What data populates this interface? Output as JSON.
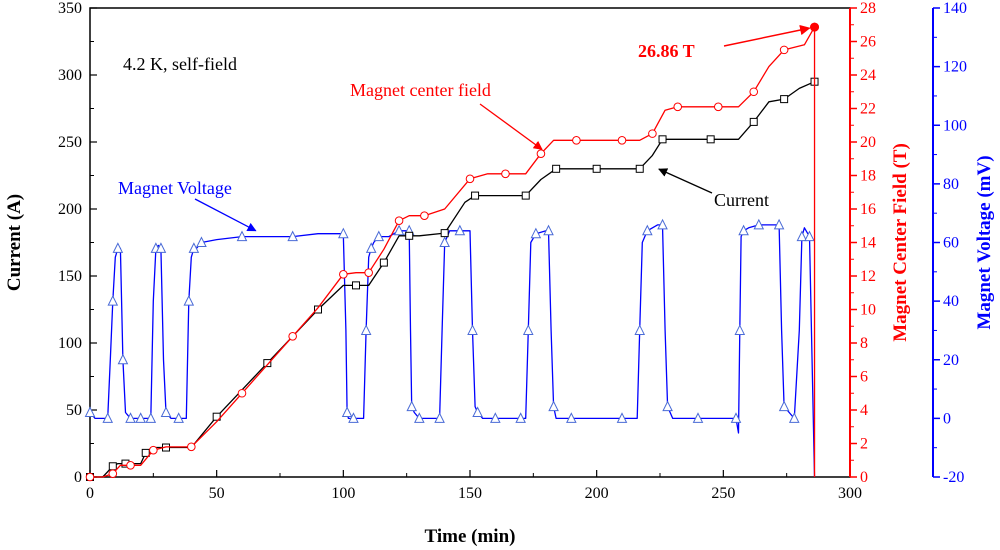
{
  "chart_data": {
    "type": "line",
    "title": "",
    "xlabel": "Time (min)",
    "xlim": [
      0,
      300
    ],
    "x_ticks": [
      0,
      50,
      100,
      150,
      200,
      250,
      300
    ],
    "axes": {
      "left": {
        "label": "Current (A)",
        "lim": [
          0,
          350
        ],
        "ticks": [
          0,
          50,
          100,
          150,
          200,
          250,
          300,
          350
        ],
        "color": "#000000"
      },
      "right_inner": {
        "label": "Magnet Center Field (T)",
        "lim": [
          0,
          28
        ],
        "ticks": [
          0,
          2,
          4,
          6,
          8,
          10,
          12,
          14,
          16,
          18,
          20,
          22,
          24,
          26,
          28
        ],
        "color": "#ff0000"
      },
      "right_outer": {
        "label": "Magnet Voltage (mV)",
        "lim": [
          -20,
          140
        ],
        "ticks": [
          -20,
          0,
          20,
          40,
          60,
          80,
          100,
          120,
          140
        ],
        "color": "#0000ff"
      }
    },
    "grid": false,
    "series": [
      {
        "name": "Current",
        "axis": "left",
        "color": "#000000",
        "marker": "square",
        "x": [
          0,
          5,
          9,
          11,
          14,
          20,
          22,
          26,
          30,
          40,
          50,
          60,
          70,
          80,
          90,
          100,
          105,
          110,
          116,
          122,
          126,
          130,
          140,
          148,
          152,
          165,
          172,
          178,
          184,
          193,
          200,
          210,
          217,
          222,
          226,
          232,
          245,
          256,
          262,
          268,
          274,
          280,
          286
        ],
        "y": [
          0,
          0,
          8,
          10,
          10,
          10,
          18,
          22,
          22,
          22,
          45,
          65,
          85,
          105,
          125,
          143,
          143,
          143,
          160,
          180,
          180,
          180,
          182,
          205,
          210,
          210,
          210,
          222,
          230,
          230,
          230,
          230,
          230,
          240,
          252,
          252,
          252,
          252,
          265,
          280,
          282,
          290,
          295
        ]
      },
      {
        "name": "Magnet center field",
        "axis": "right_inner",
        "color": "#ff0000",
        "marker": "circle",
        "x": [
          0,
          5,
          9,
          12,
          16,
          20,
          25,
          30,
          40,
          50,
          60,
          70,
          80,
          90,
          100,
          105,
          110,
          116,
          122,
          126,
          132,
          140,
          150,
          157,
          164,
          172,
          178,
          183,
          192,
          200,
          210,
          217,
          222,
          227,
          232,
          240,
          248,
          256,
          262,
          268,
          274,
          282,
          286
        ],
        "y": [
          0,
          0,
          0.2,
          0.7,
          0.7,
          0.7,
          1.6,
          1.8,
          1.8,
          3.3,
          5.0,
          6.7,
          8.4,
          10.1,
          12.1,
          12.2,
          12.2,
          13.6,
          15.3,
          15.6,
          15.6,
          16.0,
          17.8,
          18.1,
          18.1,
          18.1,
          19.3,
          20.1,
          20.1,
          20.1,
          20.1,
          20.1,
          20.5,
          21.9,
          22.1,
          22.1,
          22.1,
          22.1,
          23.0,
          24.5,
          25.5,
          25.8,
          26.86
        ]
      },
      {
        "name": "Magnet Voltage",
        "axis": "right_outer",
        "color": "#0000ff",
        "marker": "triangle",
        "x": [
          0,
          2,
          7,
          8,
          9,
          10,
          11,
          12,
          13,
          14,
          16,
          18,
          20,
          22,
          24,
          25,
          26,
          27,
          28,
          29,
          30,
          32,
          35,
          38,
          39,
          40,
          41,
          42,
          44,
          50,
          60,
          70,
          80,
          90,
          100,
          101,
          101.5,
          102,
          104,
          108,
          109,
          110,
          111,
          112,
          114,
          118,
          122,
          124,
          126,
          126.5,
          127,
          128,
          130,
          134,
          138,
          139,
          140,
          142,
          146,
          150,
          151,
          152,
          153,
          155,
          160,
          165,
          170,
          172,
          173,
          174,
          176,
          180,
          181,
          182,
          183,
          184,
          190,
          200,
          210,
          216,
          217,
          218,
          220,
          224,
          226,
          227,
          228,
          230,
          240,
          250,
          255,
          256,
          256.5,
          257,
          258,
          260,
          264,
          268,
          272,
          273,
          274,
          276,
          278,
          280,
          281,
          282,
          284,
          286
        ],
        "y": [
          2,
          0,
          0,
          20,
          40,
          55,
          58,
          58,
          20,
          2,
          0,
          0,
          0,
          0,
          0,
          40,
          58,
          59,
          58,
          20,
          2,
          0,
          0,
          0,
          40,
          55,
          58,
          58,
          60,
          61,
          62,
          62,
          62,
          63,
          63,
          30,
          2,
          0,
          0,
          0,
          30,
          55,
          58,
          60,
          62,
          62,
          64,
          64,
          64,
          30,
          4,
          2,
          0,
          0,
          0,
          30,
          60,
          64,
          64,
          64,
          30,
          4,
          2,
          0,
          0,
          0,
          0,
          0,
          30,
          60,
          63,
          64,
          64,
          30,
          4,
          0,
          0,
          0,
          0,
          0,
          30,
          60,
          64,
          66,
          66,
          30,
          4,
          0,
          0,
          0,
          0,
          -5,
          30,
          62,
          64,
          65,
          66,
          66,
          66,
          30,
          4,
          2,
          0,
          30,
          62,
          65,
          62,
          -20
        ]
      }
    ],
    "annotations": [
      {
        "id": "condition",
        "text": "4.2 K, self-field",
        "color": "#000000"
      },
      {
        "id": "field-label",
        "text": "Magnet center field",
        "color": "#ff0000",
        "arrow_to_x": 180,
        "arrow_to_y": 19.8
      },
      {
        "id": "voltage-label",
        "text": "Magnet Voltage",
        "color": "#0000ff",
        "arrow_to_x": 67,
        "arrow_to_y": 63
      },
      {
        "id": "current-label",
        "text": "Current",
        "color": "#000000",
        "arrow_to_x": 223,
        "arrow_to_y": 232
      },
      {
        "id": "peak-label",
        "text": "26.86 T",
        "color": "#ff0000",
        "arrow_to_x": 286,
        "arrow_to_y": 26.86
      }
    ]
  }
}
